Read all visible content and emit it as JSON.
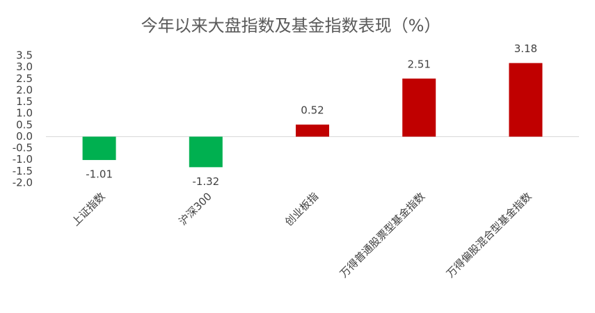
{
  "chart_data": {
    "type": "bar",
    "title": "今年以来大盘指数及基金指数表现（%）",
    "categories": [
      "上证指数",
      "沪深300",
      "创业板指",
      "万得普通股票型基金指数",
      "万得偏股混合型基金指数"
    ],
    "values": [
      -1.01,
      -1.32,
      0.52,
      2.51,
      3.18
    ],
    "colors": [
      "#00b050",
      "#00b050",
      "#c00000",
      "#c00000",
      "#c00000"
    ],
    "ylim": [
      -2,
      3.5
    ],
    "yticks": [
      3.5,
      {
        "value": 3,
        "label": "3.0"
      },
      2.5,
      {
        "value": 2,
        "label": "2.0"
      },
      1.5,
      {
        "value": 1,
        "label": "1.0"
      },
      0.5,
      {
        "value": 0,
        "label": "0.0"
      },
      -0.5,
      {
        "value": -1,
        "label": "-1.0"
      },
      -1.5,
      {
        "value": -2,
        "label": "-2.0"
      }
    ],
    "grid": false
  }
}
